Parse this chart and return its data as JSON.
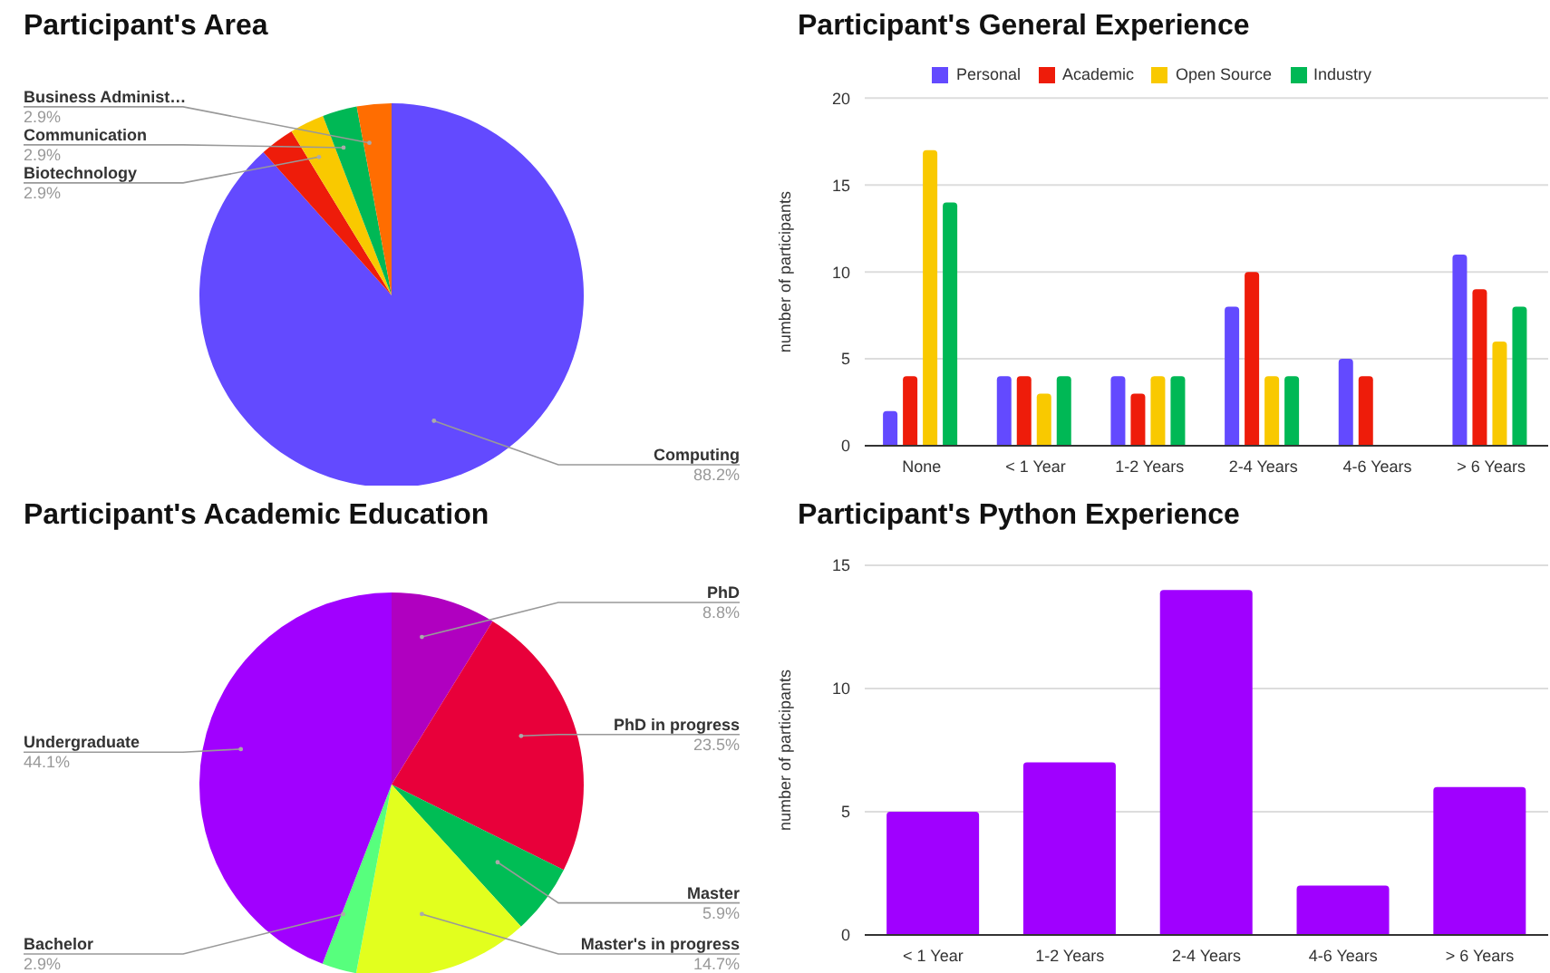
{
  "chart_data": [
    {
      "type": "pie",
      "title": "Participant's Area",
      "categories": [
        "Computing",
        null,
        "Biotechnology",
        "Communication",
        "Business Administ…"
      ],
      "values": [
        88.2,
        2.9,
        2.9,
        2.9,
        2.9
      ],
      "colors": [
        "#634aff",
        "#ee1c0a",
        "#f9c900",
        "#00b855",
        "#ff6d01"
      ],
      "value_labels": [
        "88.2%",
        null,
        "2.9%",
        "2.9%",
        "2.9%"
      ]
    },
    {
      "type": "bar",
      "title": "Participant's General Experience",
      "categories": [
        "None",
        "< 1 Year",
        "1-2 Years",
        "2-4 Years",
        "4-6 Years",
        "> 6 Years"
      ],
      "ylabel": "number of participants",
      "ylim": [
        0,
        20
      ],
      "yticks": [
        0,
        5,
        10,
        15,
        20
      ],
      "grid": "y",
      "legend": "top",
      "series": [
        {
          "name": "Personal",
          "color": "#634aff",
          "values": [
            2,
            4,
            4,
            8,
            5,
            11
          ]
        },
        {
          "name": "Academic",
          "color": "#ee1c0a",
          "values": [
            4,
            4,
            3,
            10,
            4,
            9
          ]
        },
        {
          "name": "Open Source",
          "color": "#f9c900",
          "values": [
            17,
            3,
            4,
            4,
            0,
            6
          ]
        },
        {
          "name": "Industry",
          "color": "#00b855",
          "values": [
            14,
            4,
            4,
            4,
            0,
            8
          ]
        }
      ]
    },
    {
      "type": "pie",
      "title": "Participant's Academic Education",
      "categories": [
        "PhD",
        "PhD in progress",
        "Master",
        "Master's in progress",
        "Bachelor",
        "Undergraduate"
      ],
      "values": [
        8.8,
        23.5,
        5.9,
        14.7,
        2.9,
        44.1
      ],
      "colors": [
        "#b000c0",
        "#e8003a",
        "#00bd55",
        "#e2ff1e",
        "#57ff7d",
        "#a100ff"
      ],
      "value_labels": [
        "8.8%",
        "23.5%",
        "5.9%",
        "14.7%",
        "2.9%",
        "44.1%"
      ]
    },
    {
      "type": "bar",
      "title": "Participant's Python Experience",
      "categories": [
        "< 1 Year",
        "1-2 Years",
        "2-4 Years",
        "4-6 Years",
        "> 6 Years"
      ],
      "ylabel": "number of participants",
      "ylim": [
        0,
        15
      ],
      "yticks": [
        0,
        5,
        10,
        15
      ],
      "grid": "y",
      "values": [
        5,
        7,
        14,
        2,
        6
      ],
      "color": "#a000ff"
    }
  ]
}
